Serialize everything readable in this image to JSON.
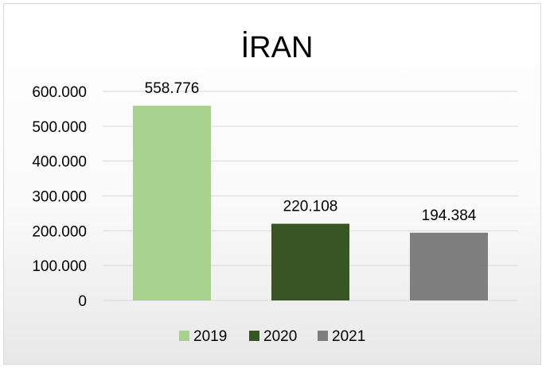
{
  "chart_data": {
    "type": "bar",
    "title": "İRAN",
    "xlabel": "",
    "ylabel": "",
    "categories": [
      "2019",
      "2020",
      "2021"
    ],
    "values": [
      558776,
      220108,
      194384
    ],
    "value_labels": [
      "558.776",
      "220.108",
      "194.384"
    ],
    "colors": [
      "#a9d18e",
      "#375623",
      "#7f7f7f"
    ],
    "ylim": [
      0,
      600000
    ],
    "y_ticks": [
      0,
      100000,
      200000,
      300000,
      400000,
      500000,
      600000
    ],
    "y_tick_labels": [
      "0",
      "100.000",
      "200.000",
      "300.000",
      "400.000",
      "500.000",
      "600.000"
    ],
    "grid": true,
    "legend": {
      "position": "bottom",
      "entries": [
        "2019",
        "2020",
        "2021"
      ]
    }
  }
}
